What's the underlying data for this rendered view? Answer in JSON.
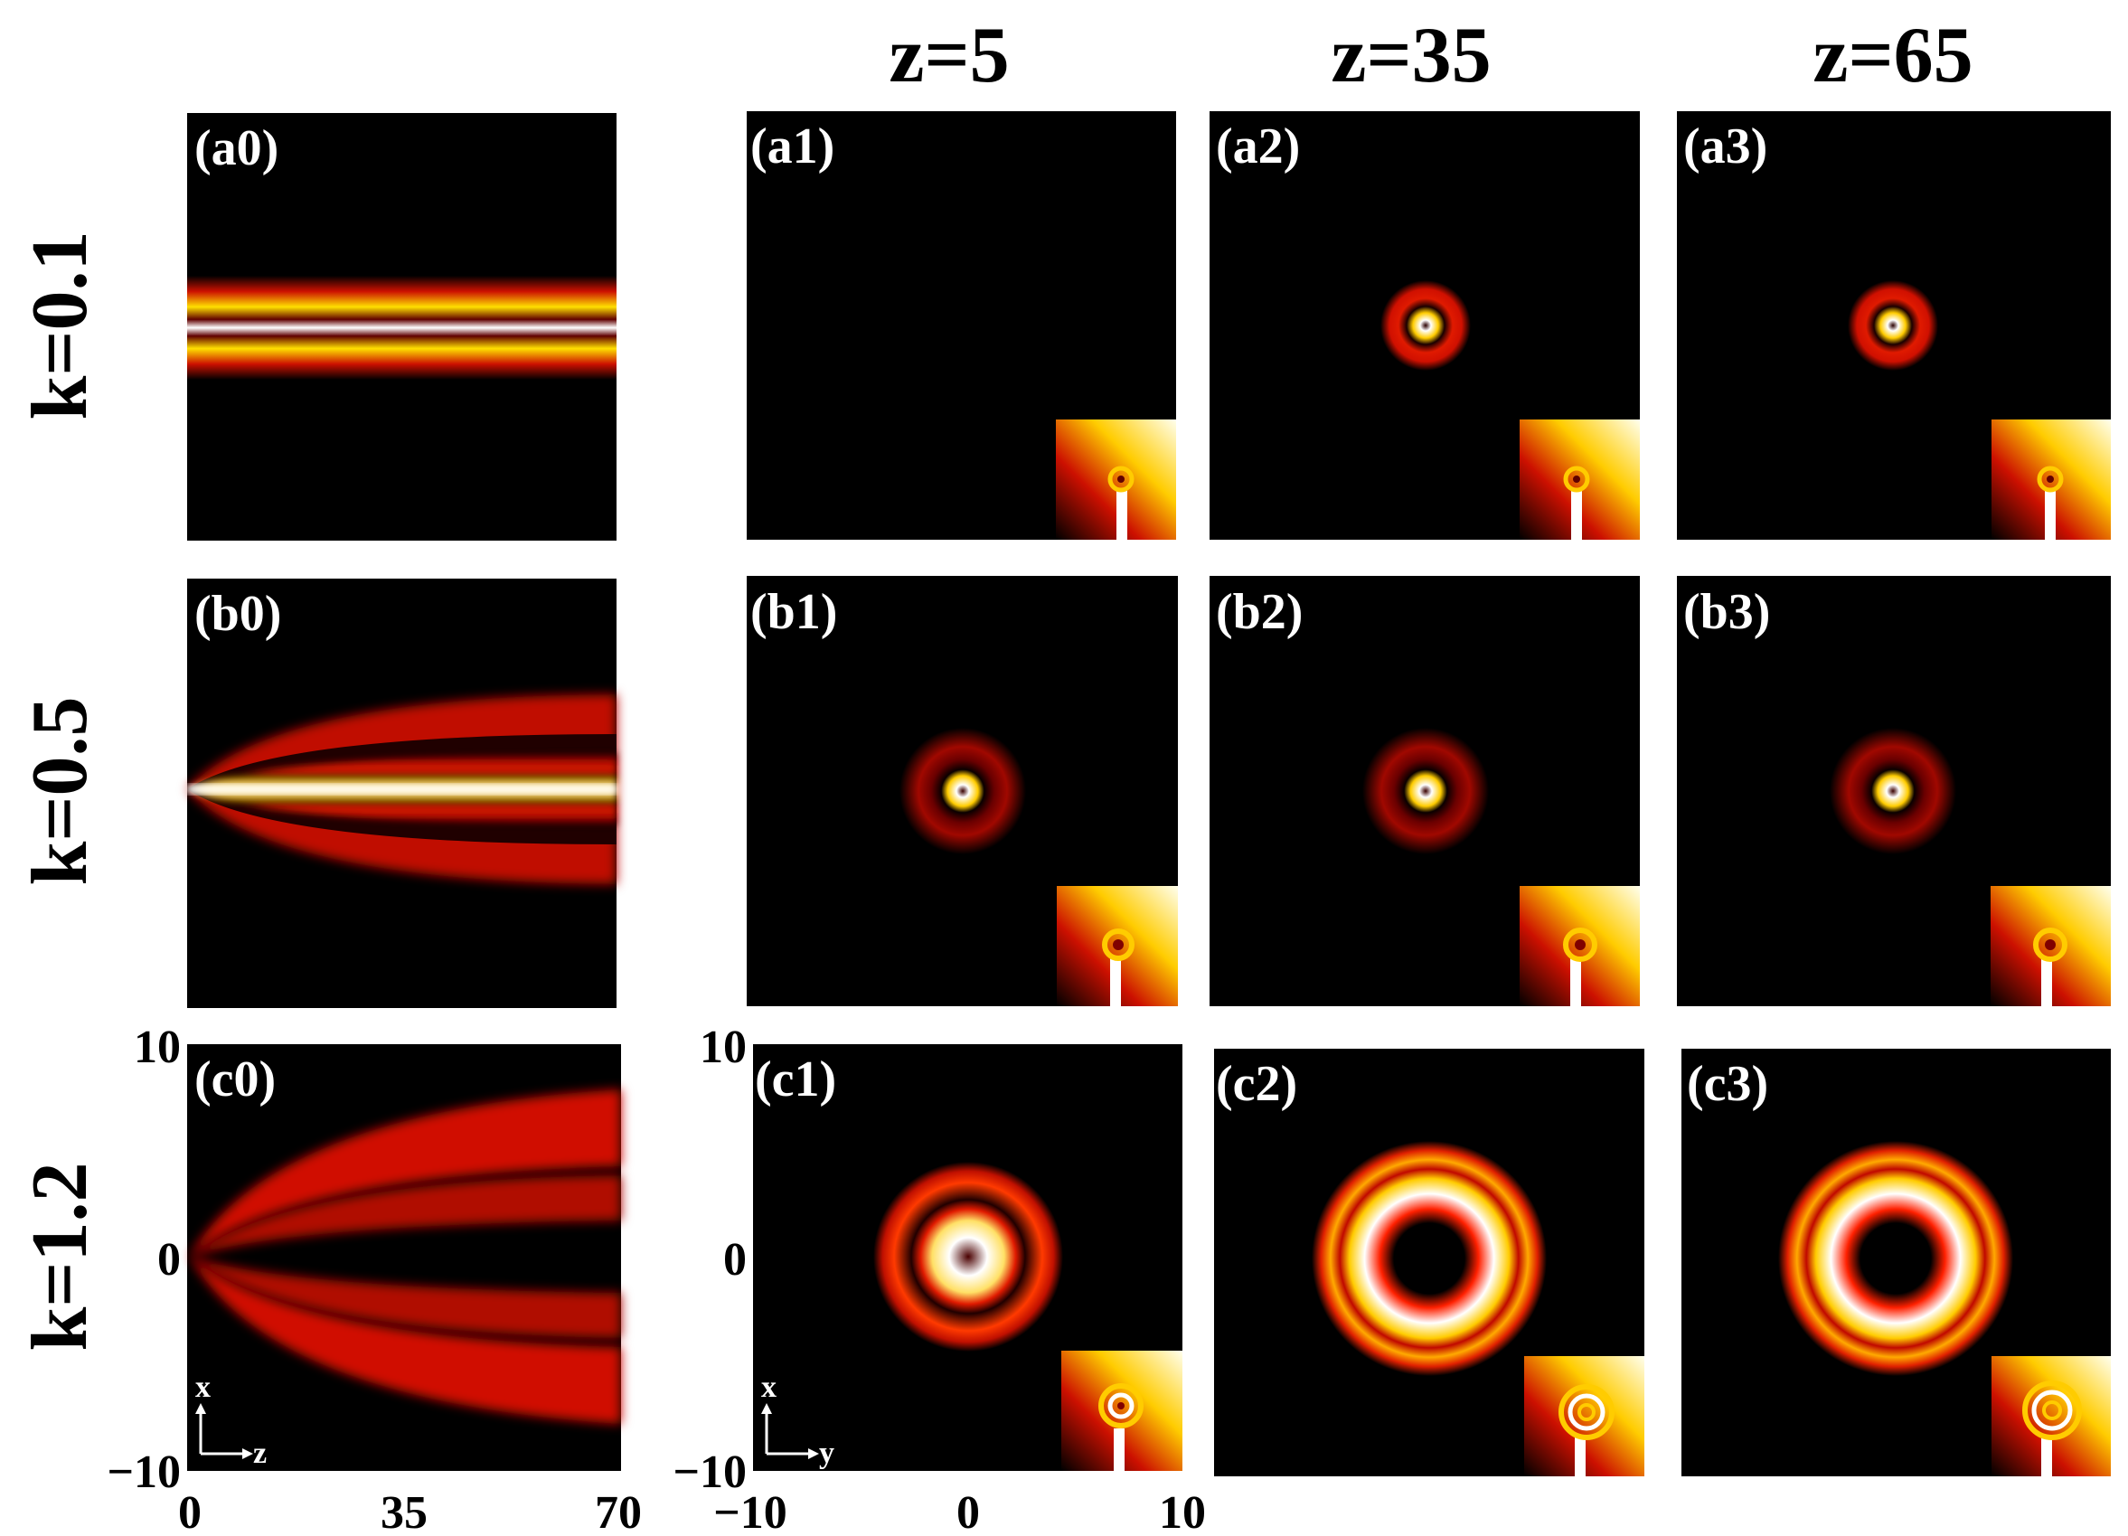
{
  "figure": {
    "columns": [
      "z=5",
      "z=35",
      "z=65"
    ],
    "rows": [
      "k=0.1",
      "k=0.5",
      "k=1.2"
    ],
    "panels": [
      {
        "label": "(a0)"
      },
      {
        "label": "(a1)"
      },
      {
        "label": "(a2)"
      },
      {
        "label": "(a3)"
      },
      {
        "label": "(b0)"
      },
      {
        "label": "(b1)"
      },
      {
        "label": "(b2)"
      },
      {
        "label": "(b3)"
      },
      {
        "label": "(c0)"
      },
      {
        "label": "(c1)"
      },
      {
        "label": "(c2)"
      },
      {
        "label": "(c3)"
      }
    ],
    "axes": {
      "c0": {
        "x_ticks": [
          "0",
          "35",
          "70"
        ],
        "y_ticks": [
          "10",
          "0",
          "−10"
        ],
        "indicator_v": "x",
        "indicator_h": "z"
      },
      "c1": {
        "x_ticks": [
          "−10",
          "0",
          "10"
        ],
        "y_ticks": [
          "10",
          "0",
          "−10"
        ],
        "indicator_v": "x",
        "indicator_h": "y"
      }
    },
    "colormap": [
      "#000000",
      "#cc0000",
      "#ffcc00",
      "#ffffff"
    ],
    "panel_background": "#000000"
  }
}
